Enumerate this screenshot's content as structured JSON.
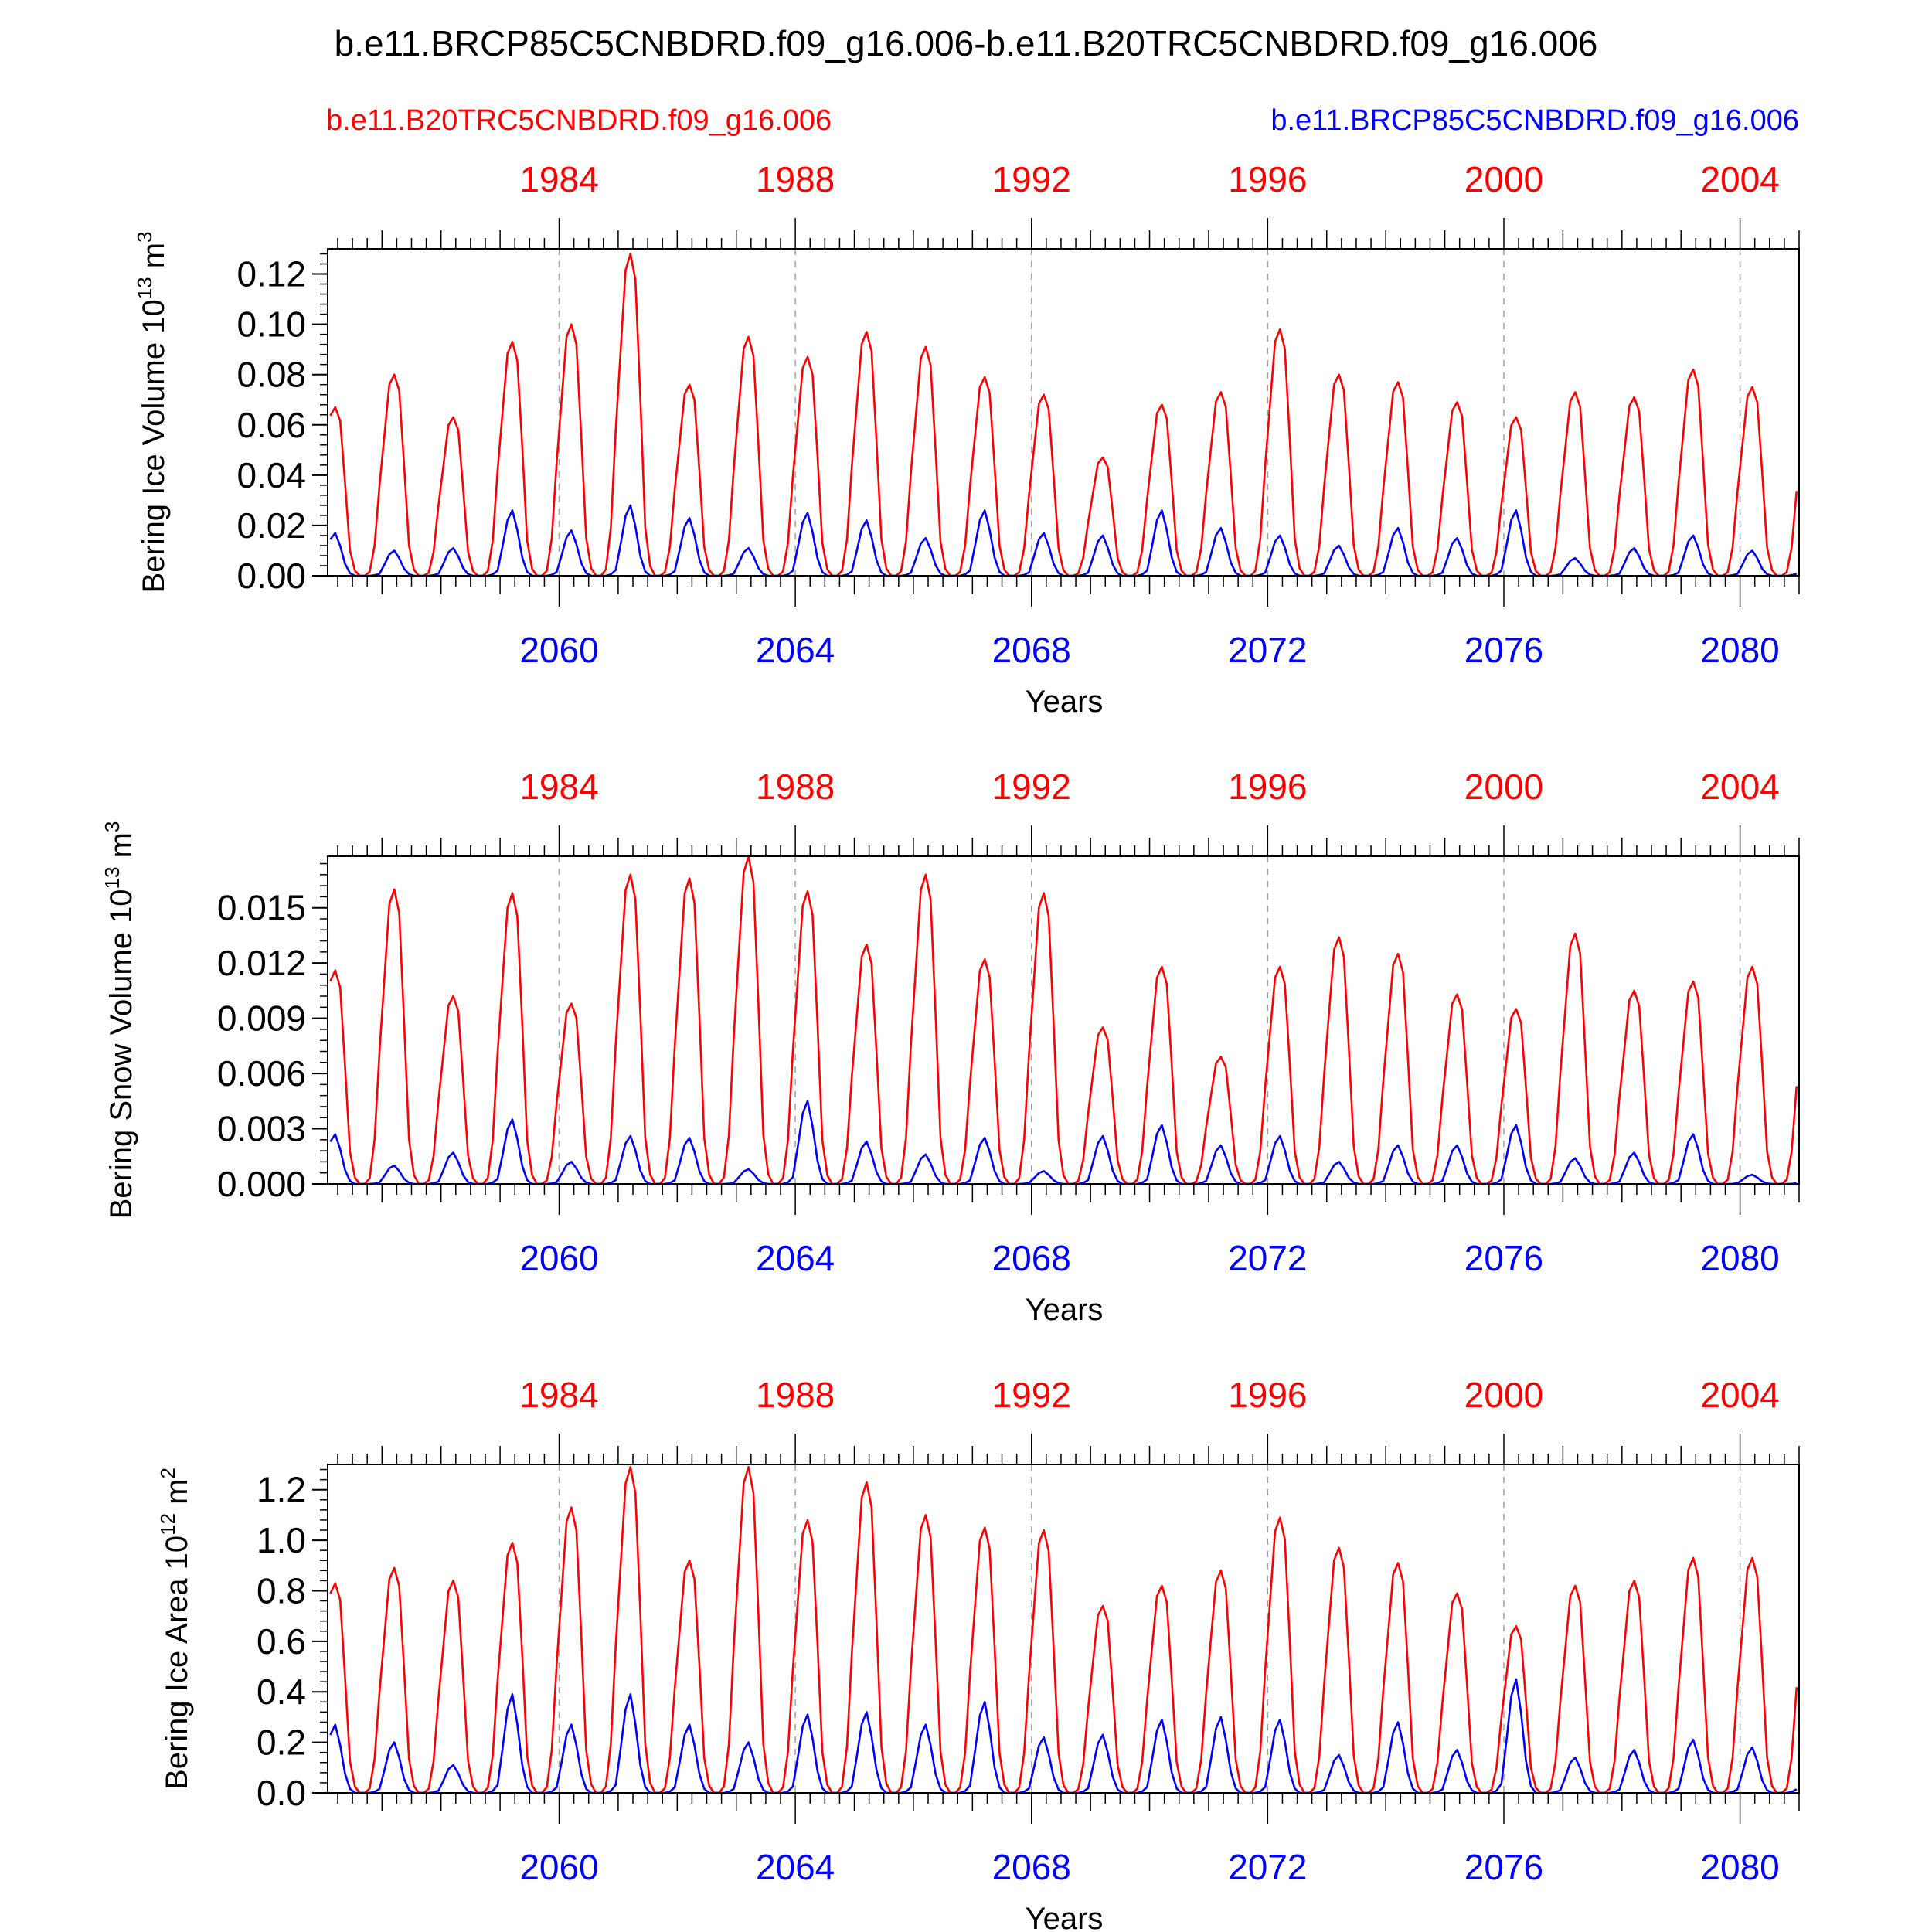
{
  "title": "b.e11.BRCP85C5CNBDRD.f09_g16.006-b.e11.B20TRC5CNBDRD.f09_g16.006",
  "legend": {
    "left": {
      "text": "b.e11.B20TRC5CNBDRD.f09_g16.006",
      "color": "#ff0000"
    },
    "right": {
      "text": "b.e11.BRCP85C5CNBDRD.f09_g16.006",
      "color": "#0000ff"
    }
  },
  "colors": {
    "red": "#ff0000",
    "blue": "#0000ff",
    "axis": "#000000",
    "grid": "#a0a0a0"
  },
  "chart_data": [
    {
      "type": "line",
      "ylabel_main": "Bering Ice Volume 10",
      "ylabel_exp": "13",
      "ylabel_unit": " m",
      "ylabel_unit_exp": "3",
      "xlabel": "Years",
      "top_axis_years": [
        "1984",
        "1988",
        "1992",
        "1996",
        "2000",
        "2004"
      ],
      "bottom_axis_years": [
        "2060",
        "2064",
        "2068",
        "2072",
        "2076",
        "2080"
      ],
      "xlim_bottom_years": [
        2056.08,
        2081.0
      ],
      "yticks": [
        "0.00",
        "0.02",
        "0.04",
        "0.06",
        "0.08",
        "0.10",
        "0.12"
      ],
      "ylim": [
        0,
        0.13
      ],
      "series": [
        {
          "name": "b.e11.B20TRC5CNBDRD.f09_g16.006",
          "color": "#ff0000",
          "peaks": [
            0.067,
            0.08,
            0.063,
            0.093,
            0.1,
            0.128,
            0.076,
            0.095,
            0.087,
            0.097,
            0.091,
            0.079,
            0.072,
            0.047,
            0.068,
            0.073,
            0.098,
            0.08,
            0.077,
            0.069,
            0.063,
            0.073,
            0.071,
            0.082,
            0.075
          ]
        },
        {
          "name": "b.e11.BRCP85C5CNBDRD.f09_g16.006",
          "color": "#0000ff",
          "peaks": [
            0.017,
            0.01,
            0.011,
            0.026,
            0.018,
            0.028,
            0.023,
            0.011,
            0.025,
            0.022,
            0.015,
            0.026,
            0.017,
            0.016,
            0.026,
            0.019,
            0.016,
            0.012,
            0.019,
            0.015,
            0.026,
            0.007,
            0.011,
            0.016,
            0.01
          ]
        }
      ]
    },
    {
      "type": "line",
      "ylabel_main": "Bering Snow Volume 10",
      "ylabel_exp": "13",
      "ylabel_unit": " m",
      "ylabel_unit_exp": "3",
      "xlabel": "Years",
      "top_axis_years": [
        "1984",
        "1988",
        "1992",
        "1996",
        "2000",
        "2004"
      ],
      "bottom_axis_years": [
        "2060",
        "2064",
        "2068",
        "2072",
        "2076",
        "2080"
      ],
      "xlim_bottom_years": [
        2056.08,
        2081.0
      ],
      "yticks": [
        "0.000",
        "0.003",
        "0.006",
        "0.009",
        "0.012",
        "0.015"
      ],
      "ylim": [
        0,
        0.0178
      ],
      "series": [
        {
          "name": "b.e11.B20TRC5CNBDRD.f09_g16.006",
          "color": "#ff0000",
          "peaks": [
            0.0116,
            0.016,
            0.0102,
            0.0158,
            0.0098,
            0.0168,
            0.0166,
            0.0178,
            0.0159,
            0.013,
            0.0168,
            0.0122,
            0.0158,
            0.0085,
            0.0118,
            0.0069,
            0.0118,
            0.0134,
            0.0125,
            0.0103,
            0.0095,
            0.0136,
            0.0105,
            0.011,
            0.0118
          ]
        },
        {
          "name": "b.e11.BRCP85C5CNBDRD.f09_g16.006",
          "color": "#0000ff",
          "peaks": [
            0.0027,
            0.001,
            0.0017,
            0.0035,
            0.0012,
            0.0026,
            0.0025,
            0.0008,
            0.0045,
            0.0023,
            0.0016,
            0.0025,
            0.0007,
            0.0026,
            0.0032,
            0.0021,
            0.0026,
            0.0012,
            0.0021,
            0.0021,
            0.0032,
            0.0014,
            0.0017,
            0.0027,
            0.0005
          ]
        }
      ]
    },
    {
      "type": "line",
      "ylabel_main": "Bering Ice Area 10",
      "ylabel_exp": "12",
      "ylabel_unit": " m",
      "ylabel_unit_exp": "2",
      "xlabel": "Years",
      "top_axis_years": [
        "1984",
        "1988",
        "1992",
        "1996",
        "2000",
        "2004"
      ],
      "bottom_axis_years": [
        "2060",
        "2064",
        "2068",
        "2072",
        "2076",
        "2080"
      ],
      "xlim_bottom_years": [
        2056.08,
        2081.0
      ],
      "yticks": [
        "0.0",
        "0.2",
        "0.4",
        "0.6",
        "0.8",
        "1.0",
        "1.2"
      ],
      "ylim": [
        0,
        1.3
      ],
      "series": [
        {
          "name": "b.e11.B20TRC5CNBDRD.f09_g16.006",
          "color": "#ff0000",
          "peaks": [
            0.83,
            0.89,
            0.84,
            0.99,
            1.13,
            1.29,
            0.92,
            1.29,
            1.08,
            1.23,
            1.1,
            1.05,
            1.04,
            0.74,
            0.82,
            0.88,
            1.09,
            0.97,
            0.91,
            0.79,
            0.66,
            0.82,
            0.84,
            0.93,
            0.93
          ]
        },
        {
          "name": "b.e11.BRCP85C5CNBDRD.f09_g16.006",
          "color": "#0000ff",
          "peaks": [
            0.27,
            0.2,
            0.11,
            0.39,
            0.27,
            0.39,
            0.27,
            0.2,
            0.31,
            0.32,
            0.27,
            0.36,
            0.22,
            0.23,
            0.29,
            0.3,
            0.29,
            0.15,
            0.28,
            0.17,
            0.45,
            0.14,
            0.17,
            0.21,
            0.18
          ]
        }
      ]
    }
  ]
}
